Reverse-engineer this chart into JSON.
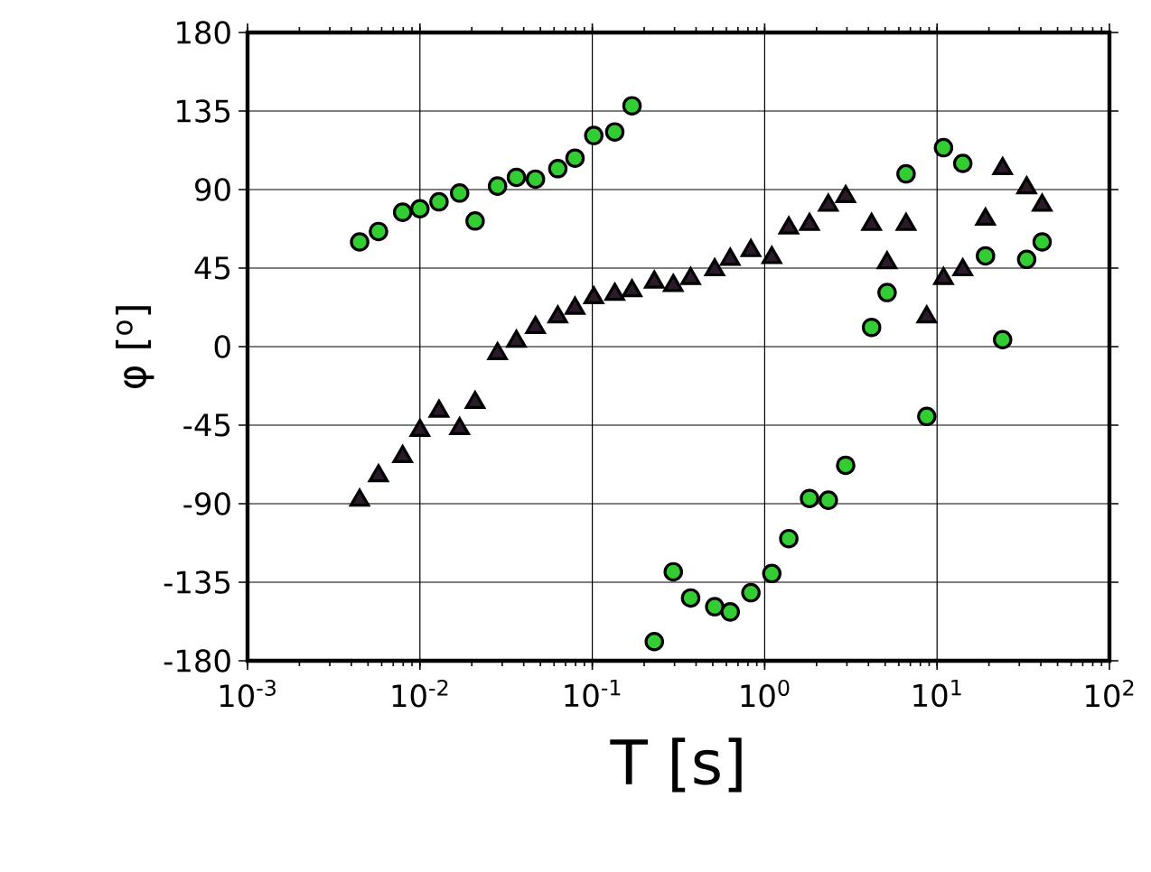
{
  "chart_data": {
    "type": "scatter",
    "xlabel": "T [s]",
    "ylabel": "φ [$^{o}$]",
    "log": "x",
    "grid": true,
    "xlim": [
      0.001,
      100
    ],
    "ylim": [
      -180,
      180
    ],
    "xticks": [
      {
        "value": 0.001,
        "label": "10$^{-3}$"
      },
      {
        "value": 0.01,
        "label": "10$^{-2}$"
      },
      {
        "value": 0.1,
        "label": "10$^{-1}$"
      },
      {
        "value": 1,
        "label": "10$^{0}$"
      },
      {
        "value": 10,
        "label": "10$^{1}$"
      },
      {
        "value": 100,
        "label": "10$^{2}$"
      }
    ],
    "yticks": [
      -180,
      -135,
      -90,
      -45,
      0,
      45,
      90,
      135,
      180
    ],
    "series": [
      {
        "color": "#33cc33",
        "marker": "circle",
        "x": [
          0.00447,
          0.00575,
          0.00794,
          0.01,
          0.0129,
          0.017,
          0.0209,
          0.0282,
          0.0363,
          0.0468,
          0.0631,
          0.0794,
          0.102,
          0.135,
          0.17,
          0.229,
          0.295,
          0.372,
          0.513,
          0.631,
          0.832,
          1.1,
          1.38,
          1.82,
          2.34,
          2.95,
          4.17,
          5.13,
          6.61,
          8.71,
          10.9,
          14.1,
          19.1,
          24.0,
          33.1,
          40.7
        ],
        "values": [
          60,
          66,
          77,
          79,
          83,
          88,
          72,
          92,
          97,
          96,
          102,
          108,
          121,
          123,
          138,
          -169,
          -129,
          -144,
          -149,
          -152,
          -141,
          -130,
          -110,
          -87,
          -88,
          -68,
          11,
          31,
          99,
          -40,
          114,
          105,
          52,
          4,
          50,
          60
        ]
      },
      {
        "color": "#2a1a2a",
        "marker": "triangle",
        "x": [
          0.00447,
          0.00575,
          0.00794,
          0.01,
          0.0129,
          0.017,
          0.0209,
          0.0282,
          0.0363,
          0.0468,
          0.0631,
          0.0794,
          0.102,
          0.135,
          0.17,
          0.229,
          0.295,
          0.372,
          0.513,
          0.631,
          0.832,
          1.1,
          1.38,
          1.82,
          2.34,
          2.95,
          4.17,
          5.13,
          6.61,
          8.71,
          10.9,
          14.1,
          19.1,
          24.0,
          33.1,
          40.7
        ],
        "values": [
          -88,
          -74,
          -63,
          -48,
          -37,
          -47,
          -32,
          -4,
          3,
          11,
          17,
          22,
          28,
          30,
          32,
          37,
          35,
          39,
          44,
          50,
          55,
          51,
          68,
          70,
          81,
          86,
          70,
          48,
          70,
          17,
          39,
          44,
          73,
          102,
          91,
          81
        ]
      }
    ]
  }
}
